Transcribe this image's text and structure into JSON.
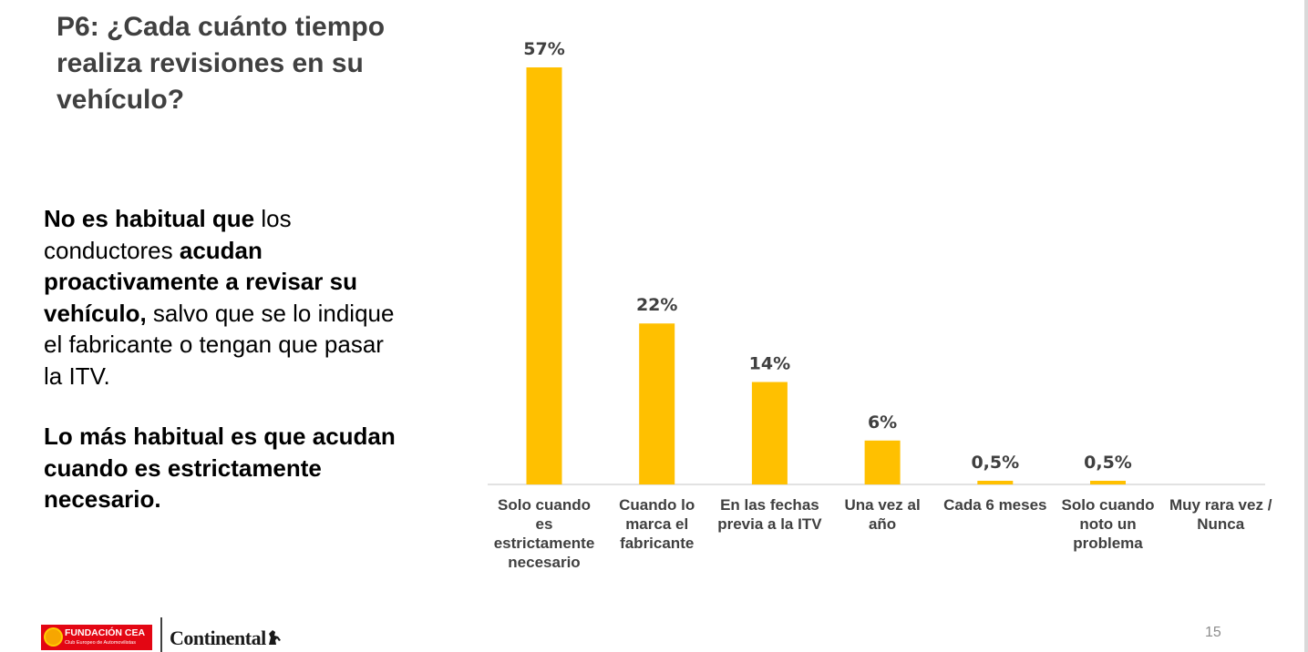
{
  "slide": {
    "title": "P6: ¿Cada cuánto tiempo realiza revisiones en su vehículo?",
    "paragraph1": [
      {
        "text": "No es habitual que",
        "bold": true
      },
      {
        "text": " los conductores ",
        "bold": false
      },
      {
        "text": "acudan proactivamente a revisar su vehículo,",
        "bold": true
      },
      {
        "text": " salvo que se lo indique el fabricante o tengan que pasar la ITV.",
        "bold": false
      }
    ],
    "paragraph2": "Lo más habitual es que acudan cuando es estrictamente necesario.",
    "page_number": "15"
  },
  "logos": {
    "cea_name": "FUNDACIÓN CEA",
    "cea_sub": "Club Europeo de Automovilistas",
    "continental": "Continental"
  },
  "chart_data": {
    "type": "bar",
    "categories": [
      [
        "Solo cuando",
        "es",
        "estrictamente",
        "necesario"
      ],
      [
        "Cuando lo",
        "marca el",
        "fabricante"
      ],
      [
        "En las fechas",
        "previa a la ITV"
      ],
      [
        "Una vez al",
        "año"
      ],
      [
        "Cada 6 meses"
      ],
      [
        "Solo cuando",
        "noto un",
        "problema"
      ],
      [
        "Muy rara vez /",
        "Nunca"
      ]
    ],
    "values": [
      57,
      22,
      14,
      6,
      0.5,
      0.5,
      null
    ],
    "data_labels": [
      "57%",
      "22%",
      "14%",
      "6%",
      "0,5%",
      "0,5%",
      ""
    ],
    "ylim": [
      0,
      57
    ],
    "bar_color": "#FFC000",
    "axis_color": "#D9D9D9",
    "grid": false,
    "legend": "none"
  }
}
